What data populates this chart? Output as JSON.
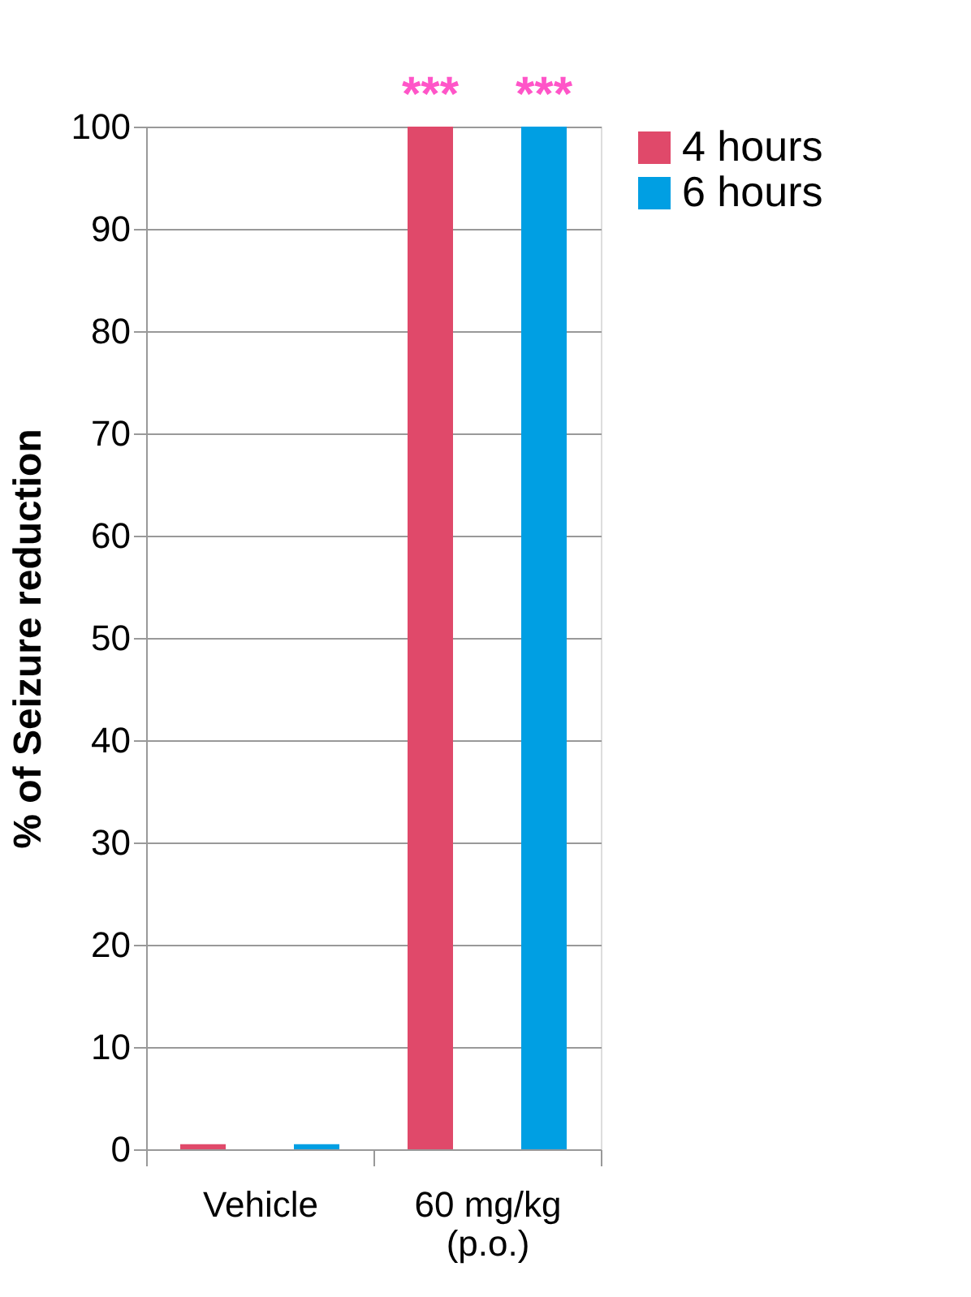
{
  "chart_data": {
    "type": "bar",
    "ylabel": "% of Seizure reduction",
    "categories": [
      "Vehicle",
      "60 mg/kg\n(p.o.)"
    ],
    "series": [
      {
        "name": "4 hours",
        "color": "#e0496a",
        "values": [
          0.5,
          100
        ]
      },
      {
        "name": "6 hours",
        "color": "#009fe3",
        "values": [
          0.5,
          100
        ]
      }
    ],
    "ylim": [
      0,
      100
    ],
    "yticks": [
      0,
      10,
      20,
      30,
      40,
      50,
      60,
      70,
      80,
      90,
      100
    ],
    "grid": "y",
    "legend": "right",
    "annotations": [
      "***",
      "***"
    ]
  }
}
